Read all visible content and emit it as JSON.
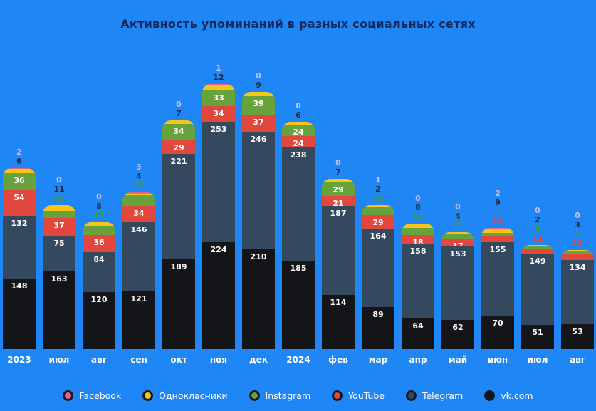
{
  "theme": {
    "background": "#1f87f5",
    "title_color": "#12285a",
    "axis_label_color": "#ffffff",
    "inside_label_color": "#ffffff",
    "legend_ring_color": "#171925"
  },
  "chart_data": {
    "type": "bar",
    "stacked": true,
    "title": "Активность упоминаний в разных социальных сетях",
    "legend_position": "bottom",
    "grid": false,
    "categories": [
      "2023",
      "июл",
      "авг",
      "сен",
      "окт",
      "ноя",
      "дек",
      "2024",
      "фев",
      "мар",
      "апр",
      "май",
      "июн",
      "июл",
      "авг"
    ],
    "series": [
      {
        "key": "facebook",
        "name": "Facebook",
        "color": "#e8638c",
        "label_color": "#c9bbf6",
        "values": [
          2,
          0,
          0,
          3,
          0,
          1,
          0,
          0,
          0,
          1,
          0,
          0,
          2,
          0,
          0
        ]
      },
      {
        "key": "ok",
        "name": "Однокласники",
        "color": "#f9c513",
        "label_color": "#1c2b4a",
        "values": [
          9,
          11,
          8,
          4,
          7,
          12,
          9,
          6,
          7,
          2,
          8,
          4,
          9,
          2,
          3
        ]
      },
      {
        "key": "instagram",
        "name": "Instagram",
        "color": "#67a23c",
        "label_color": "#3f9e38",
        "values": [
          36,
          16,
          19,
          22,
          34,
          33,
          39,
          24,
          29,
          18,
          15,
          9,
          7,
          5,
          5
        ]
      },
      {
        "key": "youtube",
        "name": "YouTube",
        "color": "#e1473c",
        "label_color": "#e8453a",
        "values": [
          54,
          37,
          36,
          34,
          29,
          34,
          37,
          24,
          21,
          29,
          18,
          17,
          12,
          11,
          13
        ]
      },
      {
        "key": "telegram",
        "name": "Telegram",
        "color": "#35495e",
        "label_color": "#ffffff",
        "values": [
          132,
          75,
          84,
          146,
          221,
          253,
          246,
          238,
          187,
          164,
          158,
          153,
          155,
          149,
          134
        ]
      },
      {
        "key": "vk",
        "name": "vk.com",
        "color": "#141519",
        "label_color": "#ffffff",
        "values": [
          148,
          163,
          120,
          121,
          189,
          224,
          210,
          185,
          114,
          89,
          64,
          62,
          70,
          51,
          53
        ]
      }
    ],
    "above_counts": [
      2,
      3,
      3,
      3,
      2,
      2,
      2,
      2,
      2,
      3,
      3,
      3,
      4,
      4,
      4
    ],
    "label_placement": "top small segments labeled above bar in series color; larger segments labeled inside in white"
  }
}
